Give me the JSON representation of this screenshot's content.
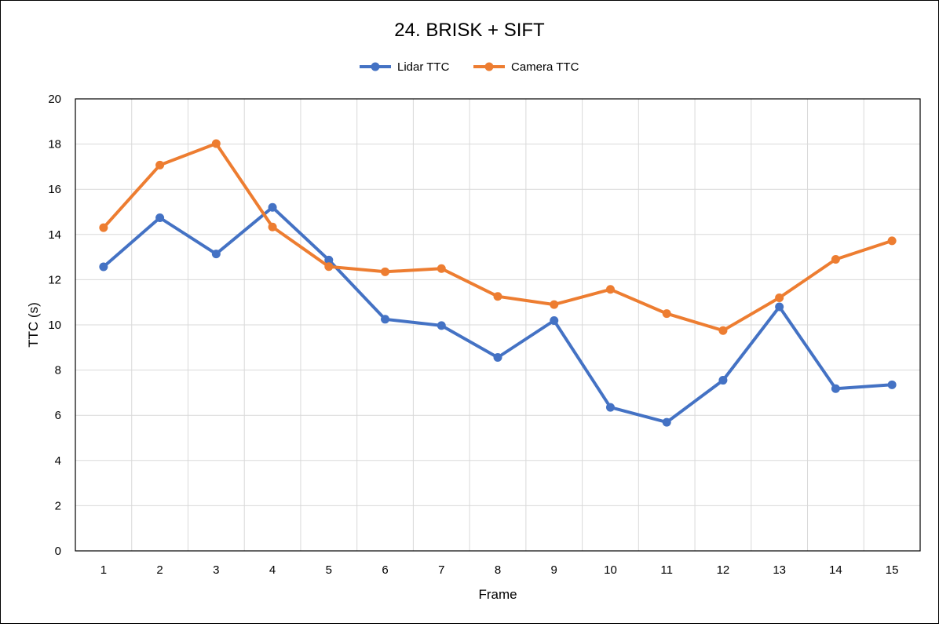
{
  "chart_data": {
    "type": "line",
    "title": "24. BRISK + SIFT",
    "xlabel": "Frame",
    "ylabel": "TTC (s)",
    "x": [
      1,
      2,
      3,
      4,
      5,
      6,
      7,
      8,
      9,
      10,
      11,
      12,
      13,
      14,
      15
    ],
    "ylim": [
      0,
      20
    ],
    "yticks": [
      0,
      2,
      4,
      6,
      8,
      10,
      12,
      14,
      16,
      18,
      20
    ],
    "grid": true,
    "legend_position": "top",
    "series": [
      {
        "name": "Lidar TTC",
        "color": "#4472C4",
        "values": [
          12.57,
          14.74,
          13.14,
          15.2,
          12.87,
          10.25,
          9.97,
          8.56,
          10.19,
          6.35,
          5.69,
          7.55,
          10.8,
          7.18,
          7.35
        ]
      },
      {
        "name": "Camera TTC",
        "color": "#ED7D31",
        "values": [
          14.3,
          17.07,
          18.02,
          14.33,
          12.58,
          12.35,
          12.49,
          11.26,
          10.9,
          11.57,
          10.5,
          9.75,
          11.2,
          12.9,
          13.72
        ]
      }
    ]
  }
}
